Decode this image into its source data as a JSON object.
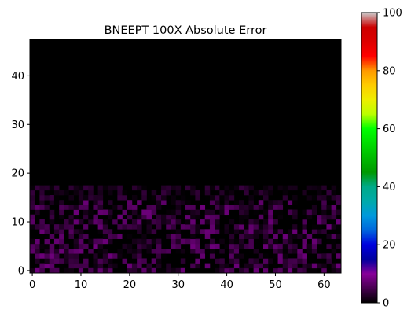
{
  "chart_data": {
    "type": "heatmap",
    "title": "BNEEPT 100X Absolute Error",
    "xlabel": "",
    "ylabel": "",
    "grid_size": {
      "cols": 64,
      "rows": 48
    },
    "xlim": [
      -0.5,
      63.5
    ],
    "ylim": [
      -0.5,
      47.5
    ],
    "x_ticks": [
      0,
      10,
      20,
      30,
      40,
      50,
      60
    ],
    "y_ticks": [
      0,
      10,
      20,
      30,
      40
    ],
    "color_range": [
      0,
      100
    ],
    "colorbar_ticks": [
      0,
      20,
      40,
      60,
      80,
      100
    ],
    "colormap": "nipy_spectral",
    "colormap_stops": [
      {
        "v": 0.0,
        "c": "#000000"
      },
      {
        "v": 0.05,
        "c": "#470050"
      },
      {
        "v": 0.1,
        "c": "#880099"
      },
      {
        "v": 0.15,
        "c": "#0000a0"
      },
      {
        "v": 0.2,
        "c": "#0000dd"
      },
      {
        "v": 0.25,
        "c": "#0066dd"
      },
      {
        "v": 0.3,
        "c": "#0099dd"
      },
      {
        "v": 0.35,
        "c": "#00aaaa"
      },
      {
        "v": 0.4,
        "c": "#00aa88"
      },
      {
        "v": 0.45,
        "c": "#009900"
      },
      {
        "v": 0.5,
        "c": "#00bb00"
      },
      {
        "v": 0.55,
        "c": "#00dd00"
      },
      {
        "v": 0.6,
        "c": "#00ff00"
      },
      {
        "v": 0.65,
        "c": "#bbff00"
      },
      {
        "v": 0.7,
        "c": "#eeee00"
      },
      {
        "v": 0.75,
        "c": "#ffcc00"
      },
      {
        "v": 0.8,
        "c": "#ff9900"
      },
      {
        "v": 0.85,
        "c": "#ff0000"
      },
      {
        "v": 0.9,
        "c": "#dd0000"
      },
      {
        "v": 0.95,
        "c": "#cc0000"
      },
      {
        "v": 1.0,
        "c": "#cccccc"
      }
    ],
    "value_description_rows": [
      {
        "rows": [
          0,
          17
        ],
        "values_range": [
          0,
          8
        ]
      },
      {
        "rows": [
          18,
          47
        ],
        "values_range": [
          0,
          0
        ]
      }
    ]
  }
}
